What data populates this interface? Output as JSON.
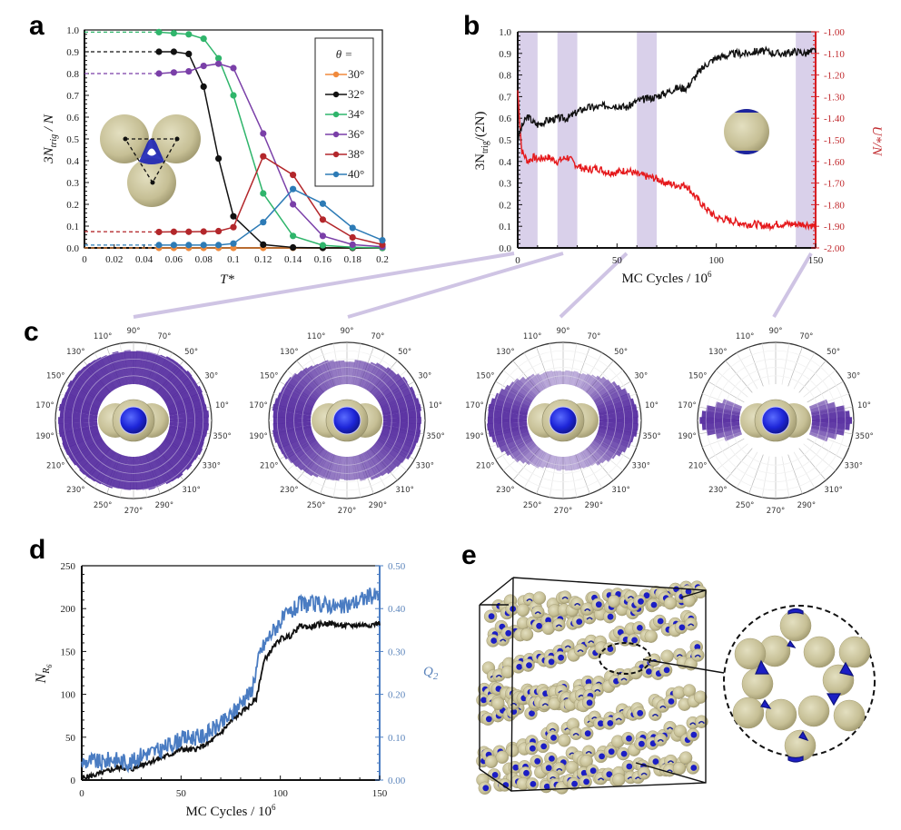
{
  "figure": {
    "panels": [
      "a",
      "b",
      "c",
      "d",
      "e"
    ]
  },
  "chart_data": [
    {
      "id": "a",
      "type": "line",
      "panel_label": "a",
      "xlabel": "T*",
      "ylabel": "3N_trig / N",
      "ylabel_main": "3N",
      "ylabel_sub": "trig",
      "ylabel_rest": " / N",
      "xlim": [
        0,
        0.2
      ],
      "ylim": [
        0,
        1.0
      ],
      "xticks": [
        "0",
        "0.02",
        "0.04",
        "0.06",
        "0.08",
        "0.1",
        "0.12",
        "0.14",
        "0.16",
        "0.18",
        "0.2"
      ],
      "yticks": [
        "0.0",
        "0.1",
        "0.2",
        "0.3",
        "0.4",
        "0.5",
        "0.6",
        "0.7",
        "0.8",
        "0.9",
        "1.0"
      ],
      "legend": {
        "title": "θ =",
        "position": "top-right"
      },
      "x": [
        0.05,
        0.06,
        0.07,
        0.08,
        0.09,
        0.1,
        0.12,
        0.14,
        0.16,
        0.18,
        0.2
      ],
      "series": [
        {
          "name": "30°",
          "color": "#f08a3c",
          "extrapolated_t0": 0.0,
          "values": [
            0.0,
            0.0,
            0.0,
            0.0,
            0.0,
            0.0,
            0.0,
            0.0,
            0.0,
            0.0,
            0.0
          ]
        },
        {
          "name": "32°",
          "color": "#111111",
          "extrapolated_t0": 0.9,
          "values": [
            0.9,
            0.9,
            0.89,
            0.74,
            0.41,
            0.145,
            0.015,
            0.002,
            0.0,
            0.0,
            0.0
          ]
        },
        {
          "name": "34°",
          "color": "#2fb56b",
          "extrapolated_t0": 0.99,
          "values": [
            0.99,
            0.985,
            0.98,
            0.96,
            0.87,
            0.7,
            0.25,
            0.055,
            0.012,
            0.003,
            0.0
          ]
        },
        {
          "name": "36°",
          "color": "#7a3fa8",
          "extrapolated_t0": 0.8,
          "values": [
            0.8,
            0.805,
            0.81,
            0.835,
            0.845,
            0.825,
            0.525,
            0.2,
            0.055,
            0.015,
            0.005
          ]
        },
        {
          "name": "38°",
          "color": "#b3272b",
          "extrapolated_t0": 0.075,
          "values": [
            0.073,
            0.074,
            0.074,
            0.075,
            0.077,
            0.095,
            0.42,
            0.335,
            0.13,
            0.048,
            0.015
          ]
        },
        {
          "name": "40°",
          "color": "#2d7bb6",
          "extrapolated_t0": 0.013,
          "values": [
            0.013,
            0.013,
            0.013,
            0.013,
            0.013,
            0.02,
            0.118,
            0.27,
            0.203,
            0.092,
            0.035
          ]
        }
      ]
    },
    {
      "id": "b",
      "type": "line",
      "panel_label": "b",
      "xlabel": "MC Cycles / 10⁶",
      "xlabel_main": "MC Cycles / 10",
      "xlabel_sup": "6",
      "ylabel_left": "3N_trig/(2N)",
      "ylabel_left_main": "3N",
      "ylabel_left_sub": "trig",
      "ylabel_left_rest": "/(2N)",
      "ylabel_right": "U*/N",
      "xlim": [
        0,
        150
      ],
      "ylim_left": [
        0,
        1.0
      ],
      "ylim_right": [
        -2.0,
        -1.0
      ],
      "xticks": [
        "0",
        "50",
        "100",
        "150"
      ],
      "yticks_left": [
        "0.0",
        "0.1",
        "0.2",
        "0.3",
        "0.4",
        "0.5",
        "0.6",
        "0.7",
        "0.8",
        "0.9",
        "1.0"
      ],
      "yticks_right": [
        "-2.00",
        "-1.90",
        "-1.80",
        "-1.70",
        "-1.60",
        "-1.50",
        "-1.40",
        "-1.30",
        "-1.20",
        "-1.10",
        "-1.00"
      ],
      "highlight_bands": [
        [
          0,
          10
        ],
        [
          20,
          30
        ],
        [
          60,
          70
        ],
        [
          140,
          150
        ]
      ],
      "highlight_color": "#d9d0ea",
      "series": [
        {
          "name": "3N_trig/(2N)",
          "axis": "left",
          "color": "#111111",
          "x": [
            0,
            2,
            5,
            8,
            10,
            15,
            20,
            25,
            30,
            35,
            40,
            45,
            50,
            55,
            60,
            65,
            70,
            75,
            80,
            85,
            90,
            95,
            100,
            105,
            110,
            115,
            120,
            125,
            130,
            135,
            140,
            145,
            150
          ],
          "y": [
            0.5,
            0.56,
            0.61,
            0.58,
            0.57,
            0.59,
            0.6,
            0.6,
            0.63,
            0.65,
            0.65,
            0.66,
            0.66,
            0.65,
            0.68,
            0.69,
            0.7,
            0.72,
            0.74,
            0.74,
            0.8,
            0.85,
            0.88,
            0.89,
            0.9,
            0.9,
            0.91,
            0.91,
            0.9,
            0.9,
            0.91,
            0.9,
            0.915
          ]
        },
        {
          "name": "U*/N",
          "axis": "right",
          "color": "#e5191c",
          "x": [
            0,
            2,
            5,
            8,
            10,
            15,
            20,
            25,
            30,
            35,
            40,
            45,
            50,
            55,
            60,
            65,
            70,
            75,
            80,
            85,
            90,
            95,
            100,
            105,
            110,
            115,
            120,
            125,
            130,
            135,
            140,
            145,
            150
          ],
          "y": [
            -1.27,
            -1.55,
            -1.6,
            -1.58,
            -1.59,
            -1.58,
            -1.6,
            -1.58,
            -1.62,
            -1.64,
            -1.63,
            -1.65,
            -1.65,
            -1.64,
            -1.66,
            -1.67,
            -1.68,
            -1.7,
            -1.71,
            -1.71,
            -1.77,
            -1.82,
            -1.86,
            -1.87,
            -1.88,
            -1.89,
            -1.89,
            -1.9,
            -1.89,
            -1.89,
            -1.89,
            -1.89,
            -1.9
          ]
        }
      ]
    },
    {
      "id": "c",
      "type": "polar-histogram",
      "panel_label": "c",
      "angle_ticks": [
        "10°",
        "30°",
        "50°",
        "70°",
        "90°",
        "110°",
        "130°",
        "150°",
        "170°",
        "190°",
        "210°",
        "230°",
        "250°",
        "270°",
        "290°",
        "310°",
        "330°",
        "350°"
      ],
      "subplots": [
        {
          "window_mc_cycles": [
            0,
            10
          ],
          "min_len": 0.8,
          "max_len": 0.92,
          "darkness_equator": 0.9,
          "darkness_pole": 0.85
        },
        {
          "window_mc_cycles": [
            20,
            30
          ],
          "min_len": 0.55,
          "max_len": 0.92,
          "darkness_equator": 0.9,
          "darkness_pole": 0.55
        },
        {
          "window_mc_cycles": [
            60,
            70
          ],
          "min_len": 0.32,
          "max_len": 0.95,
          "darkness_equator": 0.9,
          "darkness_pole": 0.35
        },
        {
          "window_mc_cycles": [
            140,
            150
          ],
          "min_len": 0.0,
          "max_len": 0.95,
          "darkness_equator": 0.9,
          "darkness_pole": 0.25
        }
      ]
    },
    {
      "id": "d",
      "type": "line",
      "panel_label": "d",
      "xlabel": "MC Cycles / 10⁶",
      "xlabel_main": "MC Cycles / 10",
      "xlabel_sup": "6",
      "ylabel_left": "N_R6",
      "ylabel_left_main": "N",
      "ylabel_left_sub": "R",
      "ylabel_left_subsub": "6",
      "ylabel_right": "Q_2",
      "ylabel_right_main": "Q",
      "ylabel_right_sub": "2",
      "xlim": [
        0,
        150
      ],
      "ylim_left": [
        0,
        250
      ],
      "ylim_right": [
        0,
        0.5
      ],
      "xticks": [
        "0",
        "50",
        "100",
        "150"
      ],
      "yticks_left": [
        "0",
        "50",
        "100",
        "150",
        "200",
        "250"
      ],
      "yticks_right": [
        "0.00",
        "0.10",
        "0.20",
        "0.30",
        "0.40",
        "0.50"
      ],
      "series": [
        {
          "name": "N_R6",
          "axis": "left",
          "color": "#111111",
          "x": [
            0,
            5,
            10,
            15,
            20,
            25,
            30,
            35,
            40,
            45,
            50,
            55,
            60,
            65,
            70,
            75,
            80,
            85,
            88,
            90,
            92,
            95,
            100,
            105,
            110,
            115,
            120,
            125,
            130,
            135,
            140,
            145,
            150
          ],
          "y": [
            2,
            5,
            8,
            12,
            15,
            12,
            18,
            22,
            26,
            30,
            36,
            35,
            38,
            45,
            55,
            68,
            78,
            88,
            95,
            120,
            140,
            150,
            165,
            168,
            180,
            178,
            182,
            183,
            180,
            180,
            181,
            181,
            183
          ]
        },
        {
          "name": "Q_2",
          "axis": "right",
          "color": "#4a7cc2",
          "x": [
            0,
            5,
            10,
            15,
            20,
            25,
            30,
            35,
            40,
            45,
            50,
            55,
            60,
            65,
            70,
            75,
            80,
            83,
            85,
            88,
            90,
            95,
            100,
            105,
            110,
            115,
            120,
            125,
            130,
            135,
            140,
            145,
            150
          ],
          "y": [
            0.04,
            0.045,
            0.04,
            0.05,
            0.045,
            0.04,
            0.06,
            0.065,
            0.07,
            0.085,
            0.095,
            0.1,
            0.1,
            0.115,
            0.13,
            0.15,
            0.18,
            0.2,
            0.2,
            0.26,
            0.3,
            0.34,
            0.37,
            0.39,
            0.41,
            0.41,
            0.41,
            0.41,
            0.4,
            0.41,
            0.42,
            0.43,
            0.43
          ]
        }
      ]
    }
  ],
  "panel_e": {
    "panel_label": "e",
    "description": "simulation box of patchy spheres forming helical tubes with zoomed cross-section inset",
    "sphere_color": "#c9c39a",
    "patch_color": "#1c1ec4"
  }
}
